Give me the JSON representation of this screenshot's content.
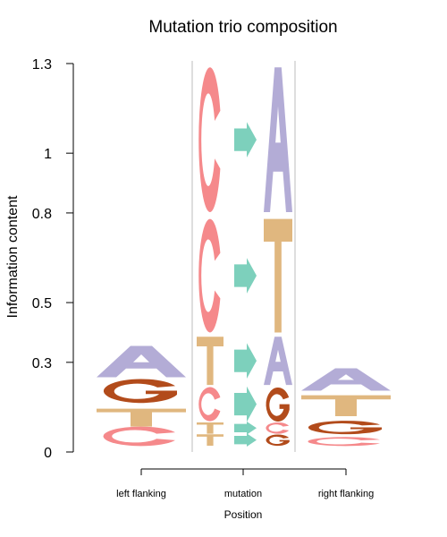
{
  "chart_data": {
    "type": "sequence-logo",
    "title": "Mutation trio composition",
    "ylabel": "Information content",
    "xlabel": "Position",
    "ylim": [
      0,
      1.3
    ],
    "yticks": [
      {
        "value": 0,
        "label": "0"
      },
      {
        "value": 0.3,
        "label": "0.3"
      },
      {
        "value": 0.5,
        "label": "0.5"
      },
      {
        "value": 0.8,
        "label": "0.8"
      },
      {
        "value": 1,
        "label": "1"
      },
      {
        "value": 1.3,
        "label": "1.3"
      }
    ],
    "categories": [
      "left flanking",
      "mutation",
      "right flanking"
    ],
    "colors": {
      "A": "#b3acd6",
      "C": "#f5898b",
      "G": "#b24b1b",
      "T": "#e0b77f",
      "arrow": "#7dd0bc"
    },
    "left_flanking": [
      {
        "base": "C",
        "from": 0.02,
        "to": 0.085
      },
      {
        "base": "T",
        "from": 0.085,
        "to": 0.145
      },
      {
        "base": "G",
        "from": 0.165,
        "to": 0.245
      },
      {
        "base": "A",
        "from": 0.25,
        "to": 0.355
      }
    ],
    "right_flanking": [
      {
        "base": "C",
        "from": 0.02,
        "to": 0.05
      },
      {
        "base": "G",
        "from": 0.06,
        "to": 0.105
      },
      {
        "base": "T",
        "from": 0.12,
        "to": 0.19
      },
      {
        "base": "A",
        "from": 0.205,
        "to": 0.28
      }
    ],
    "mutations": [
      {
        "from_base": "T",
        "to_base": "G",
        "bottom": 0.02,
        "top": 0.06
      },
      {
        "from_base": "T",
        "to_base": "C",
        "bottom": 0.06,
        "top": 0.1
      },
      {
        "from_base": "C",
        "to_base": "G",
        "bottom": 0.1,
        "top": 0.22
      },
      {
        "from_base": "T",
        "to_base": "A",
        "bottom": 0.22,
        "top": 0.39
      },
      {
        "from_base": "C",
        "to_base": "T",
        "bottom": 0.39,
        "top": 0.79
      },
      {
        "from_base": "C",
        "to_base": "A",
        "bottom": 0.79,
        "top": 1.3
      }
    ]
  }
}
